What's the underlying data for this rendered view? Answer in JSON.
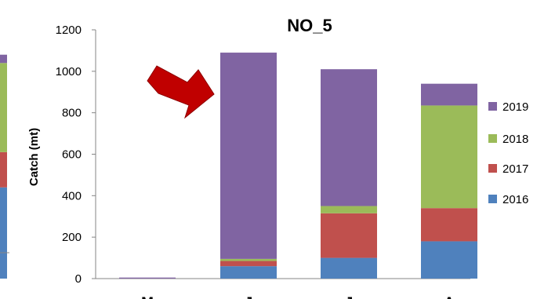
{
  "chart_data": {
    "type": "bar",
    "stacked": true,
    "title": "NO_5",
    "xlabel": "",
    "ylabel": "Catch (mt)",
    "ylim": [
      0,
      1200
    ],
    "yticks": [
      0,
      200,
      400,
      600,
      800,
      1000,
      1200
    ],
    "categories": [
      "M",
      "J",
      "J",
      "A"
    ],
    "series": [
      {
        "name": "2016",
        "color": "#4f81bd",
        "values": [
          0,
          60,
          100,
          180
        ]
      },
      {
        "name": "2017",
        "color": "#c0504d",
        "values": [
          0,
          25,
          215,
          160
        ]
      },
      {
        "name": "2018",
        "color": "#9bbb59",
        "values": [
          0,
          10,
          35,
          495
        ]
      },
      {
        "name": "2019",
        "color": "#8064a2",
        "values": [
          5,
          995,
          660,
          105
        ]
      }
    ],
    "legend_placement": "right",
    "legend_order": [
      "2019",
      "2018",
      "2017",
      "2016"
    ],
    "grid": false,
    "annotation": {
      "type": "arrow",
      "color": "#c00000",
      "points_to": "J"
    }
  },
  "left_panel": {
    "segments": [
      {
        "color": "#4f81bd",
        "value": 440
      },
      {
        "color": "#c0504d",
        "value": 170
      },
      {
        "color": "#9bbb59",
        "value": 430
      },
      {
        "color": "#8064a2",
        "value": 40
      }
    ]
  }
}
